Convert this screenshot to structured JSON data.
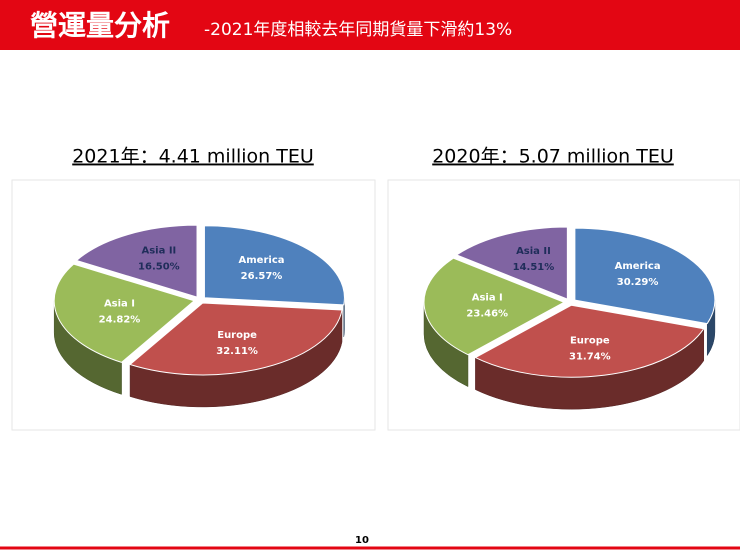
{
  "header": {
    "title": "營運量分析",
    "subtitle": "-2021年度相較去年同期貨量下滑約13%"
  },
  "page_number": "10",
  "chart_data": [
    {
      "type": "pie",
      "title": "2021年：4.41 million TEU",
      "categories": [
        "America",
        "Europe",
        "Asia I",
        "Asia II"
      ],
      "values": [
        26.57,
        32.11,
        24.82,
        16.5
      ],
      "value_labels": [
        "26.57%",
        "32.11%",
        "24.82%",
        "16.50%"
      ],
      "colors": [
        "#4f81bd",
        "#c0504d",
        "#9bbb59",
        "#8064a2"
      ]
    },
    {
      "type": "pie",
      "title": "2020年：5.07 million TEU",
      "categories": [
        "America",
        "Europe",
        "Asia I",
        "Asia II"
      ],
      "values": [
        30.29,
        31.74,
        23.46,
        14.51
      ],
      "value_labels": [
        "30.29%",
        "31.74%",
        "23.46%",
        "14.51%"
      ],
      "colors": [
        "#4f81bd",
        "#c0504d",
        "#9bbb59",
        "#8064a2"
      ]
    }
  ]
}
